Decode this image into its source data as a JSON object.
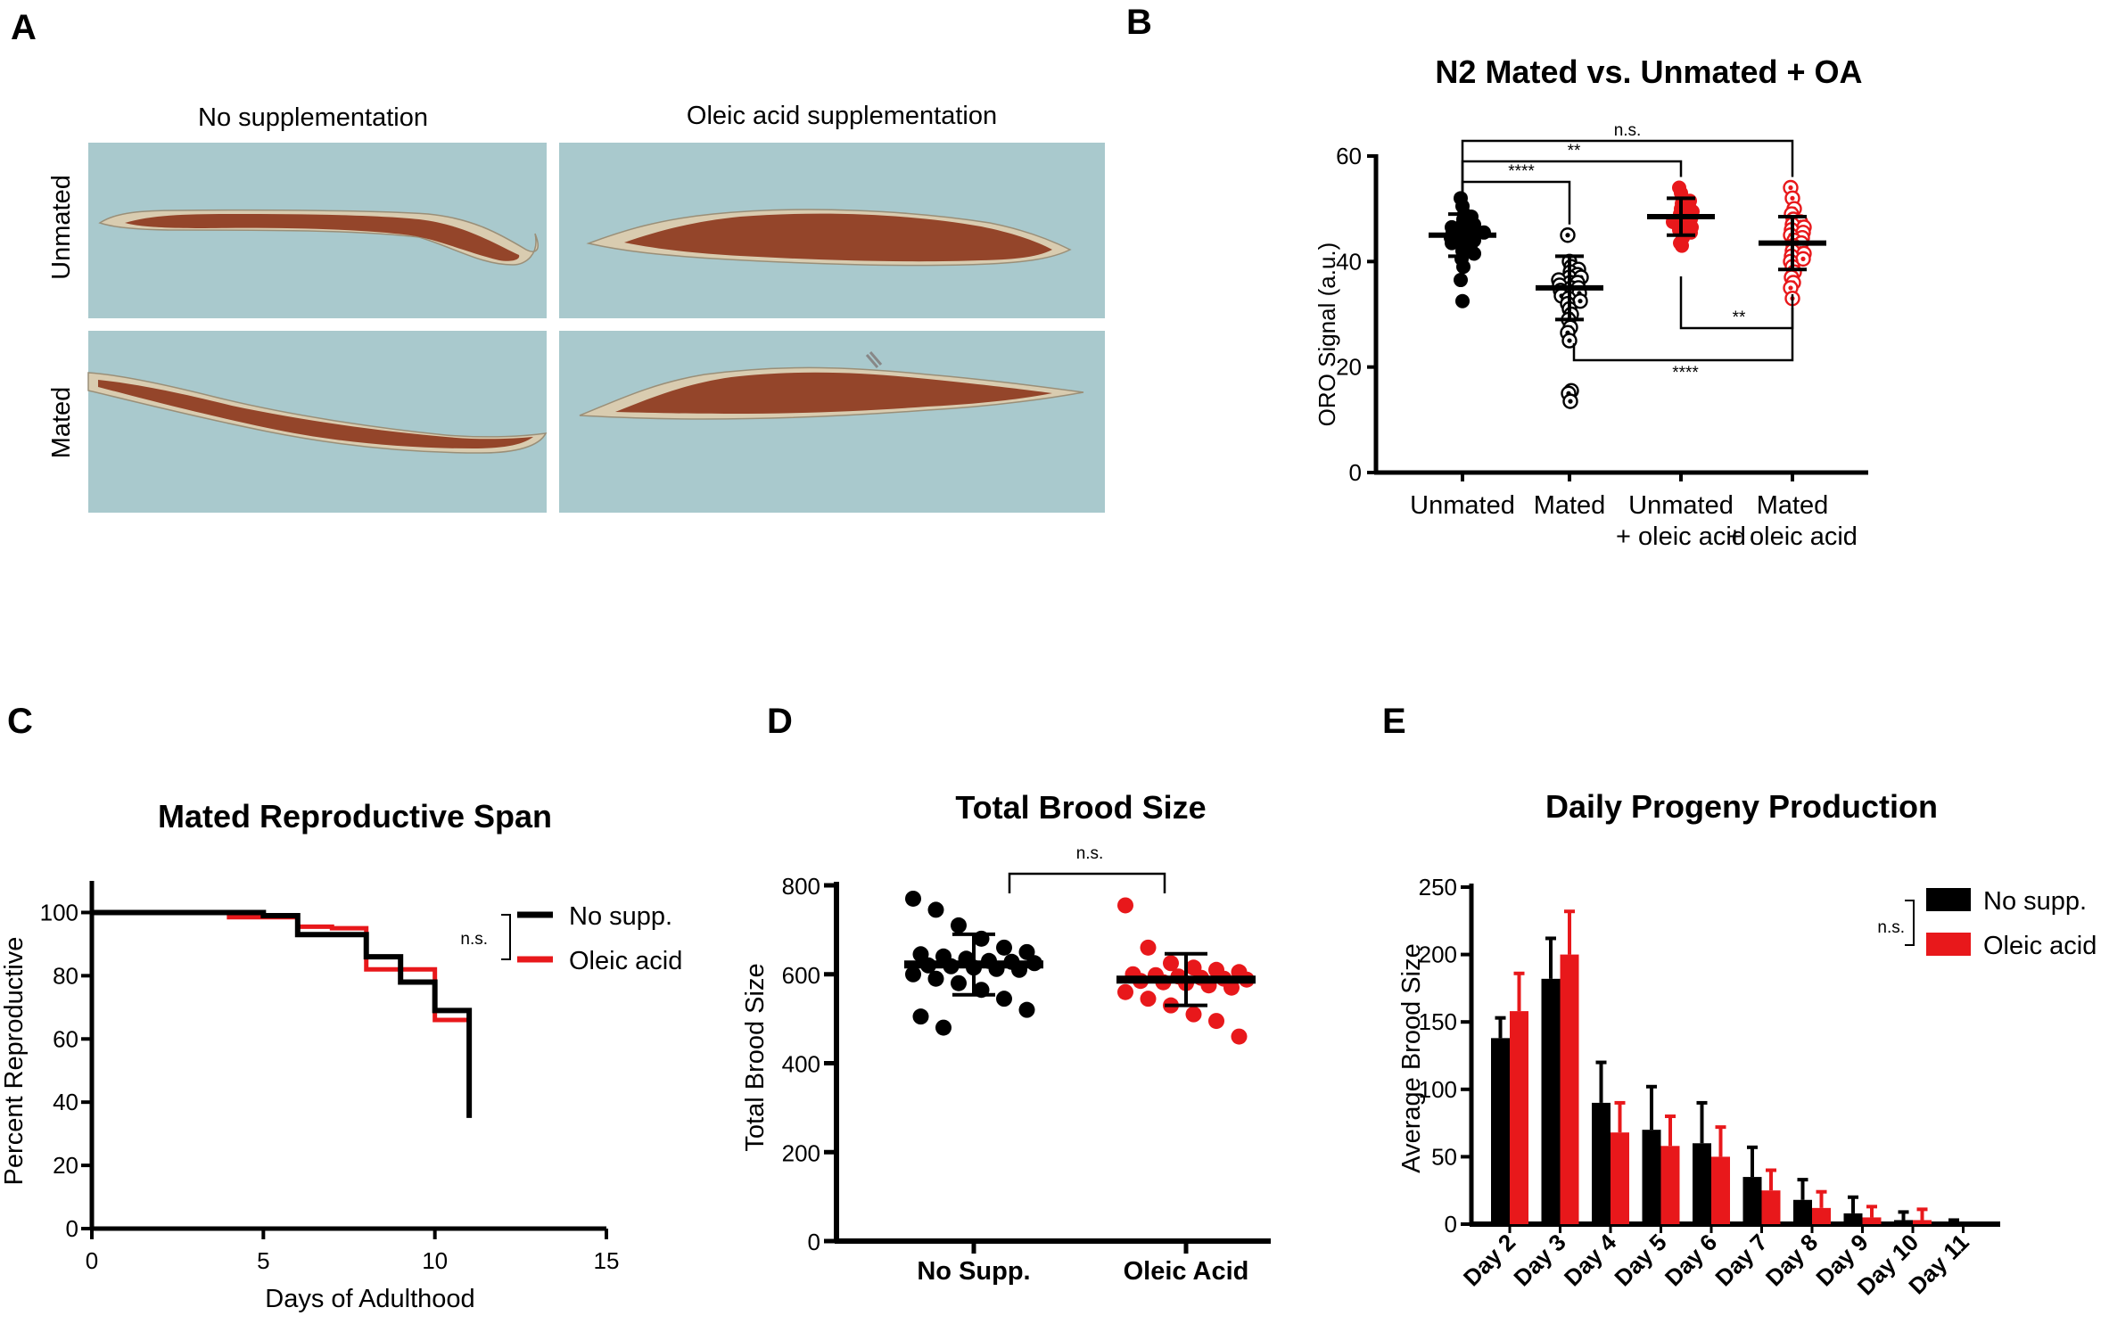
{
  "panel_labels": [
    "A",
    "B",
    "C",
    "D",
    "E"
  ],
  "panel_a": {
    "col_labels": [
      "No supplementation",
      "Oleic acid supplementation"
    ],
    "row_labels": [
      "Unmated",
      "Mated"
    ],
    "image_bg": "#a9c9cd",
    "worm_color": "#8e3a1e"
  },
  "chart_data": [
    {
      "id": "B",
      "type": "scatter",
      "title": "N2 Mated vs. Unmated + OA",
      "xlabel": "",
      "ylabel": "ORO  Signal (a.u.)",
      "ylim": [
        0,
        60
      ],
      "yticks": [
        0,
        20,
        40,
        60
      ],
      "categories": [
        "Unmated",
        "Mated",
        "Unmated\n+ oleic acid",
        "Mated\n+ oleic acid"
      ],
      "groups": [
        {
          "name": "Unmated",
          "color": "#000000",
          "marker": "filled",
          "mean": 45,
          "sd": 4,
          "values": [
            52,
            50.5,
            49,
            48.5,
            48,
            47.5,
            47,
            47,
            46.5,
            46,
            46,
            45.5,
            45.5,
            45,
            45,
            44.5,
            44,
            44,
            43.5,
            43,
            42.5,
            42,
            41.5,
            40.5,
            39,
            36.5,
            32.5
          ]
        },
        {
          "name": "Mated",
          "color": "#000000",
          "marker": "open",
          "mean": 35,
          "sd": 6,
          "values": [
            45,
            40,
            39,
            38.5,
            38,
            37.5,
            37,
            37,
            36.5,
            36,
            36,
            35.5,
            35,
            35,
            34.5,
            34,
            34,
            33.5,
            33,
            32.5,
            32,
            31,
            30,
            29,
            27.5,
            26.5,
            25,
            15.5,
            15,
            13.5
          ]
        },
        {
          "name": "Unmated + oleic acid",
          "color": "#e8181b",
          "marker": "filled",
          "mean": 48.5,
          "sd": 3.5,
          "values": [
            54,
            53,
            52,
            51.5,
            51,
            50.5,
            50,
            49.5,
            49,
            48.5,
            48,
            48,
            47.5,
            47,
            46.5,
            46,
            45.5,
            44.5,
            43.5,
            43
          ]
        },
        {
          "name": "Mated + oleic acid",
          "color": "#e8181b",
          "marker": "open",
          "mean": 43.5,
          "sd": 5,
          "values": [
            54,
            52,
            50,
            49,
            48,
            47.5,
            47,
            46.5,
            46,
            45.5,
            45,
            44.5,
            44,
            43.5,
            43,
            42.5,
            42,
            41.5,
            41,
            40.5,
            40,
            39,
            38,
            37,
            36,
            35,
            33
          ]
        }
      ],
      "comparisons": [
        {
          "from": 0,
          "to": 3,
          "label": "n.s.",
          "side": "top"
        },
        {
          "from": 0,
          "to": 2,
          "label": "**",
          "side": "top"
        },
        {
          "from": 0,
          "to": 1,
          "label": "****",
          "side": "top"
        },
        {
          "from": 2,
          "to": 3,
          "label": "**",
          "side": "bottom"
        },
        {
          "from": 1,
          "to": 3,
          "label": "****",
          "side": "bottom"
        }
      ]
    },
    {
      "id": "C",
      "type": "line",
      "title": "Mated Reproductive Span",
      "xlabel": "Days of Adulthood",
      "ylabel": "Percent Reproductive",
      "xlim": [
        0,
        15
      ],
      "ylim": [
        0,
        110
      ],
      "xticks": [
        0,
        5,
        10,
        15
      ],
      "yticks": [
        0,
        20,
        40,
        60,
        80,
        100
      ],
      "legend": {
        "position": "top-right",
        "significance": "n.s."
      },
      "series": [
        {
          "name": "Oleic acid",
          "color": "#e8181b",
          "x": [
            0,
            4,
            6,
            7,
            8,
            9,
            10,
            11
          ],
          "y": [
            100,
            98.5,
            95.5,
            95,
            82,
            82,
            66,
            66
          ]
        },
        {
          "name": "No supp.",
          "color": "#000000",
          "x": [
            0,
            5,
            6,
            8,
            9,
            10,
            11,
            11
          ],
          "y": [
            100,
            99,
            93,
            86,
            78,
            69,
            69,
            35
          ]
        }
      ]
    },
    {
      "id": "D",
      "type": "scatter",
      "title": "Total Brood Size",
      "xlabel": "",
      "ylabel": "Total Brood Size",
      "ylim": [
        0,
        800
      ],
      "yticks": [
        0,
        200,
        400,
        600,
        800
      ],
      "categories": [
        "No Supp.",
        "Oleic Acid"
      ],
      "comparison": {
        "label": "n.s."
      },
      "groups": [
        {
          "name": "No Supp.",
          "color": "#000000",
          "mean": 622,
          "sd": 68,
          "values": [
            770,
            745,
            710,
            680,
            660,
            650,
            645,
            640,
            635,
            630,
            628,
            625,
            620,
            618,
            615,
            612,
            610,
            600,
            590,
            580,
            565,
            545,
            520,
            505,
            480
          ]
        },
        {
          "name": "Oleic Acid",
          "color": "#e8181b",
          "mean": 588,
          "sd": 58,
          "values": [
            755,
            660,
            625,
            615,
            610,
            605,
            600,
            598,
            595,
            592,
            590,
            588,
            585,
            582,
            580,
            575,
            570,
            560,
            545,
            530,
            510,
            495,
            460
          ]
        }
      ]
    },
    {
      "id": "E",
      "type": "bar",
      "title": "Daily Progeny Production",
      "xlabel": "",
      "ylabel": "Average Brood Size",
      "ylim": [
        0,
        250
      ],
      "yticks": [
        0,
        50,
        100,
        150,
        200,
        250
      ],
      "categories": [
        "Day 2",
        "Day 3",
        "Day 4",
        "Day 5",
        "Day 6",
        "Day 7",
        "Day 8",
        "Day 9",
        "Day 10",
        "Day 11"
      ],
      "legend": {
        "position": "top-right",
        "significance": "n.s."
      },
      "series": [
        {
          "name": "No supp.",
          "color": "#000000",
          "values": [
            138,
            182,
            90,
            70,
            60,
            35,
            18,
            8,
            3,
            1
          ],
          "errors": [
            15,
            30,
            30,
            32,
            30,
            22,
            15,
            12,
            6,
            2
          ]
        },
        {
          "name": "Oleic acid",
          "color": "#e8181b",
          "values": [
            158,
            200,
            68,
            58,
            50,
            25,
            12,
            5,
            3,
            0
          ],
          "errors": [
            28,
            32,
            22,
            22,
            22,
            15,
            12,
            8,
            8,
            0
          ]
        }
      ]
    }
  ]
}
